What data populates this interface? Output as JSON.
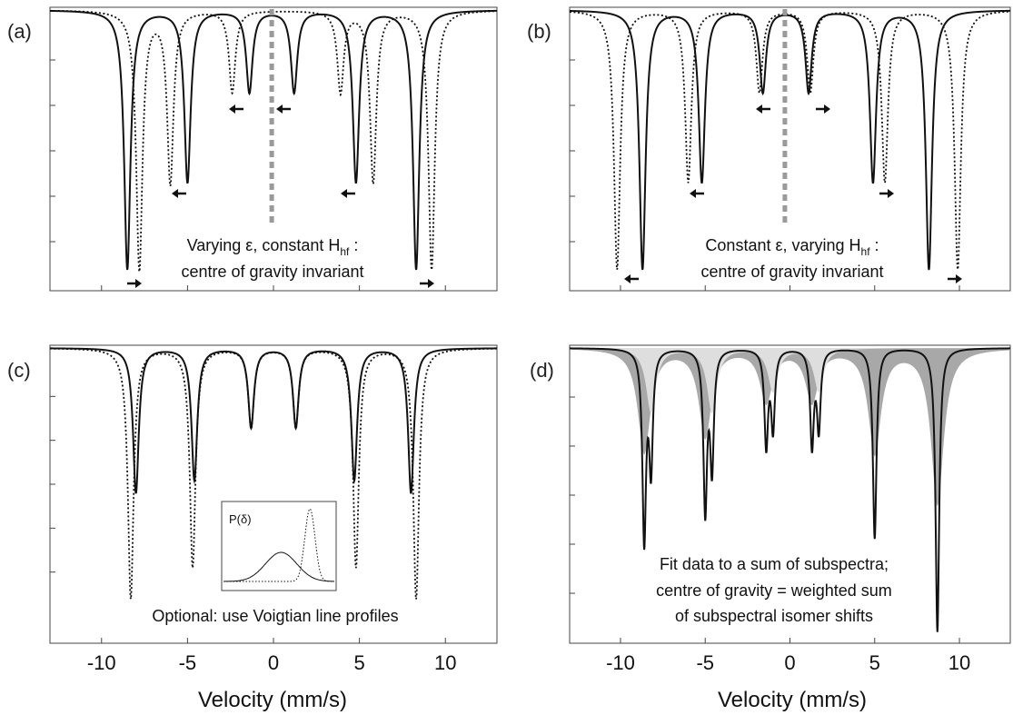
{
  "chart_data": [
    {
      "panel": "(a)",
      "type": "line",
      "xlim": [
        -13,
        13
      ],
      "series": [
        {
          "style": "solid",
          "lines": [
            -8.5,
            -5.0,
            -1.4,
            1.2,
            4.8,
            8.3
          ],
          "depths": [
            0.95,
            0.63,
            0.3,
            0.3,
            0.63,
            0.95
          ]
        },
        {
          "style": "dotted",
          "lines": [
            -7.8,
            -6.0,
            -2.4,
            3.9,
            5.8,
            9.2
          ],
          "depths": [
            0.95,
            0.63,
            0.3,
            0.3,
            0.63,
            0.95
          ]
        }
      ],
      "annotation": {
        "line1_prefix": "Varying ε, constant H",
        "line1_sub": "hf",
        "line1_suffix": " :",
        "line2": "centre of gravity invariant"
      },
      "shift_arrows": "right, left, left, left, left, right",
      "centre_marker": "dashed grey vertical line near 0"
    },
    {
      "panel": "(b)",
      "type": "line",
      "xlim": [
        -13,
        13
      ],
      "series": [
        {
          "style": "solid",
          "lines": [
            -8.7,
            -5.2,
            -1.6,
            1.1,
            4.9,
            8.2
          ],
          "depths": [
            0.95,
            0.63,
            0.3,
            0.3,
            0.63,
            0.95
          ]
        },
        {
          "style": "dotted",
          "lines": [
            -10.2,
            -6.0,
            -1.8,
            1.2,
            5.6,
            9.9
          ],
          "depths": [
            0.95,
            0.63,
            0.3,
            0.3,
            0.63,
            0.95
          ]
        }
      ],
      "annotation": {
        "line1_prefix": "Constant ε, varying H",
        "line1_sub": "hf",
        "line1_suffix": " :",
        "line2": "centre of gravity invariant"
      },
      "shift_arrows": "left, left, left, right, right, right",
      "centre_marker": "dashed grey vertical line near 0"
    },
    {
      "panel": "(c)",
      "type": "line",
      "xlim": [
        -13,
        13
      ],
      "series": [
        {
          "style": "solid",
          "lines": [
            -8.0,
            -4.6,
            -1.3,
            1.3,
            4.7,
            8.0
          ],
          "depths": [
            0.55,
            0.5,
            0.3,
            0.3,
            0.5,
            0.55
          ]
        },
        {
          "style": "dotted",
          "lines": [
            -8.3,
            -4.7,
            -1.3,
            1.3,
            4.8,
            8.3
          ],
          "depths": [
            0.95,
            0.83,
            0.3,
            0.3,
            0.83,
            0.95
          ]
        }
      ],
      "annotation": {
        "text": "Optional: use Voigtian line profiles"
      },
      "inset": {
        "ylabel": "P(δ)",
        "curves": [
          "broad solid Gaussian",
          "narrow dotted Gaussian shifted right"
        ]
      }
    },
    {
      "panel": "(d)",
      "type": "line",
      "xlim": [
        -13,
        13
      ],
      "series": [
        {
          "style": "solid",
          "name": "",
          "lines": [
            -8.6,
            -8.2,
            -5.0,
            -4.6,
            -1.4,
            -1.0,
            1.3,
            1.7,
            5.0,
            8.7
          ],
          "depths": [
            0.65,
            0.4,
            0.55,
            0.4,
            0.33,
            0.27,
            0.33,
            0.27,
            0.65,
            0.97
          ]
        }
      ],
      "subspectra_fill": {
        "dark": "#a8a8a8",
        "light": "#dedede"
      },
      "annotation": {
        "line1": "Fit data to a sum of subspectra;",
        "line2": "centre of gravity = weighted sum",
        "line3": "of subspectral isomer shifts"
      }
    }
  ],
  "axes": {
    "xticks": [
      -10,
      -5,
      0,
      5,
      10
    ],
    "xtick_labels": [
      "-10",
      "-5",
      "0",
      "5",
      "10"
    ],
    "xlabel": "Velocity (mm/s)"
  },
  "colors": {
    "line": "#111111",
    "marker": "#9a9a9a",
    "fill_dark": "#a8a8a8",
    "fill_light": "#dedede"
  }
}
